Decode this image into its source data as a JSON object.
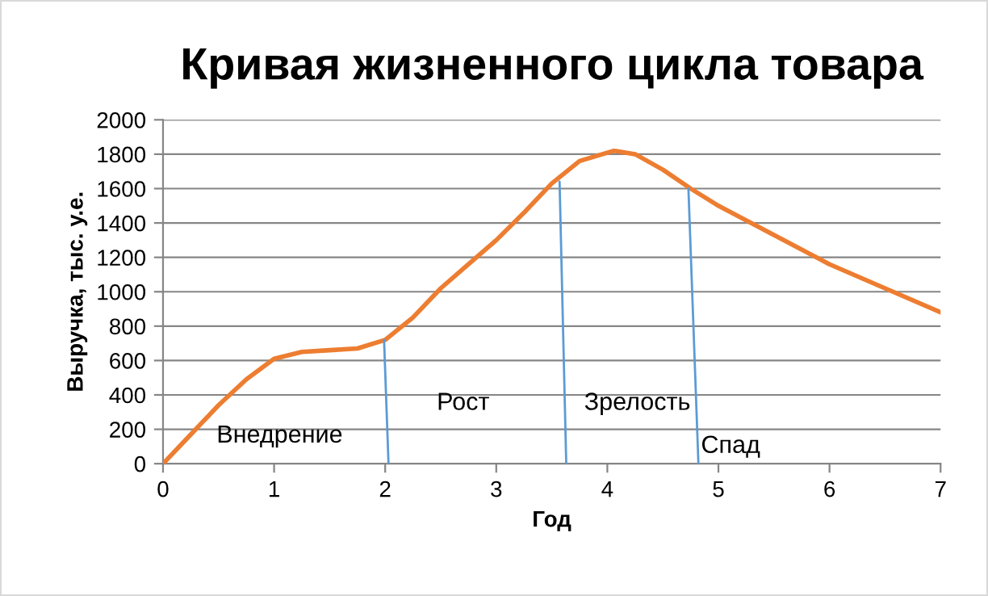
{
  "chart_data": {
    "type": "line",
    "title": "Кривая жизненного цикла товара",
    "xlabel": "Год",
    "ylabel": "Выручка, тыс. у.е.",
    "series": [
      {
        "color": "#ed7d31",
        "x": [
          0,
          0.25,
          0.5,
          0.75,
          1,
          1.25,
          1.5,
          1.75,
          2,
          2.25,
          2.5,
          2.75,
          3,
          3.25,
          3.5,
          3.75,
          4.06,
          4.25,
          4.5,
          4.75,
          5,
          5.5,
          6,
          6.5,
          7
        ],
        "values": [
          0,
          170,
          340,
          490,
          610,
          650,
          660,
          670,
          720,
          850,
          1020,
          1160,
          1300,
          1460,
          1630,
          1760,
          1820,
          1800,
          1710,
          1600,
          1500,
          1330,
          1160,
          1020,
          880
        ]
      },
      {
        "color": "#5b9bd5",
        "x": [
          1.99,
          2.03
        ],
        "values": [
          720,
          0
        ]
      },
      {
        "color": "#5b9bd5",
        "x": [
          3.57,
          3.63
        ],
        "values": [
          1640,
          0
        ]
      },
      {
        "color": "#5b9bd5",
        "x": [
          4.73,
          4.82
        ],
        "values": [
          1600,
          0
        ]
      }
    ],
    "annotations": [
      "Внедрение",
      "Рост",
      "Зрелость",
      "Спад"
    ],
    "xlim": [
      0,
      7
    ],
    "xticks": [
      0,
      1,
      2,
      3,
      4,
      5,
      6,
      7
    ],
    "ylim": [
      0,
      2000
    ],
    "yticks": [
      0,
      200,
      400,
      600,
      800,
      1000,
      1200,
      1400,
      1600,
      1800,
      2000
    ],
    "grid": "y",
    "marker": "none",
    "line_style": "solid"
  }
}
